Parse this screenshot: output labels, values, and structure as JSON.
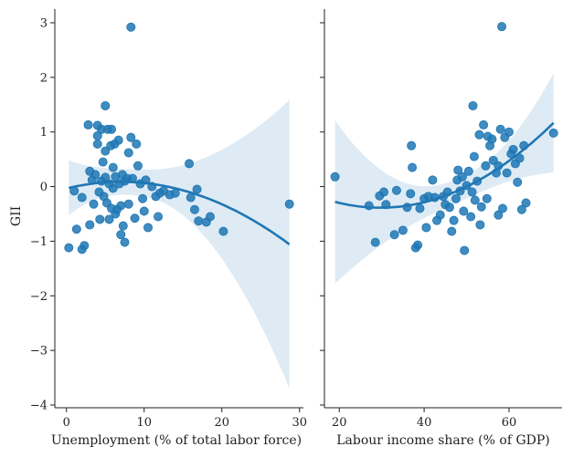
{
  "chart_data": [
    {
      "type": "scatter",
      "panel": "left",
      "xlabel": "Unemployment (% of total labor force)",
      "ylabel": "GII",
      "xlim": [
        -1.5,
        30.5
      ],
      "ylim": [
        -4.05,
        3.25
      ],
      "xticks": [
        0,
        10,
        20,
        30
      ],
      "yticks": [
        -4,
        -3,
        -2,
        -1,
        0,
        1,
        2,
        3
      ],
      "fit": "quadratic regression with confidence band",
      "points": [
        [
          0.3,
          -1.12
        ],
        [
          1.0,
          -0.08
        ],
        [
          1.3,
          -0.78
        ],
        [
          2.0,
          -0.2
        ],
        [
          2.0,
          -1.15
        ],
        [
          2.3,
          -1.08
        ],
        [
          2.8,
          1.13
        ],
        [
          3.0,
          0.28
        ],
        [
          3.0,
          -0.7
        ],
        [
          3.3,
          0.12
        ],
        [
          3.5,
          -0.32
        ],
        [
          3.7,
          0.22
        ],
        [
          4.0,
          1.12
        ],
        [
          4.0,
          0.93
        ],
        [
          4.0,
          0.78
        ],
        [
          4.2,
          -0.1
        ],
        [
          4.3,
          -0.6
        ],
        [
          4.5,
          1.05
        ],
        [
          4.5,
          0.1
        ],
        [
          4.7,
          0.45
        ],
        [
          4.8,
          -0.18
        ],
        [
          5.0,
          1.48
        ],
        [
          5.0,
          0.65
        ],
        [
          5.0,
          0.17
        ],
        [
          5.2,
          -0.3
        ],
        [
          5.3,
          1.05
        ],
        [
          5.5,
          0.05
        ],
        [
          5.5,
          -0.6
        ],
        [
          5.7,
          0.75
        ],
        [
          5.8,
          1.05
        ],
        [
          5.8,
          -0.4
        ],
        [
          6.0,
          0.35
        ],
        [
          6.0,
          -0.03
        ],
        [
          6.2,
          0.78
        ],
        [
          6.3,
          0.18
        ],
        [
          6.3,
          -0.5
        ],
        [
          6.5,
          -0.42
        ],
        [
          6.7,
          0.85
        ],
        [
          6.8,
          0.05
        ],
        [
          7.0,
          -0.35
        ],
        [
          7.0,
          -0.88
        ],
        [
          7.2,
          0.22
        ],
        [
          7.3,
          -0.72
        ],
        [
          7.5,
          0.1
        ],
        [
          7.5,
          -1.02
        ],
        [
          7.8,
          0.15
        ],
        [
          8.0,
          0.62
        ],
        [
          8.0,
          -0.32
        ],
        [
          8.3,
          2.92
        ],
        [
          8.3,
          0.9
        ],
        [
          8.5,
          0.15
        ],
        [
          8.8,
          -0.58
        ],
        [
          9.0,
          0.78
        ],
        [
          9.2,
          0.38
        ],
        [
          9.5,
          0.05
        ],
        [
          9.8,
          -0.22
        ],
        [
          10.0,
          -0.45
        ],
        [
          10.2,
          0.12
        ],
        [
          10.5,
          -0.75
        ],
        [
          11.0,
          0.0
        ],
        [
          11.5,
          -0.18
        ],
        [
          11.8,
          -0.55
        ],
        [
          12.0,
          -0.12
        ],
        [
          12.5,
          -0.08
        ],
        [
          13.3,
          -0.15
        ],
        [
          14.0,
          -0.12
        ],
        [
          15.8,
          0.42
        ],
        [
          16.0,
          -0.2
        ],
        [
          16.5,
          -0.42
        ],
        [
          16.8,
          -0.05
        ],
        [
          17.0,
          -0.63
        ],
        [
          18.0,
          -0.65
        ],
        [
          18.5,
          -0.55
        ],
        [
          20.2,
          -0.82
        ],
        [
          28.7,
          -0.32
        ]
      ]
    },
    {
      "type": "scatter",
      "panel": "right",
      "xlabel": "Labour income share (% of GDP)",
      "ylabel": "",
      "xlim": [
        16.5,
        72.5
      ],
      "ylim": [
        -4.05,
        3.25
      ],
      "xticks": [
        20,
        40,
        60
      ],
      "yticks": [
        -4,
        -3,
        -2,
        -1,
        0,
        1,
        2,
        3
      ],
      "fit": "quadratic regression with confidence band",
      "points": [
        [
          19.0,
          0.18
        ],
        [
          27.0,
          -0.35
        ],
        [
          28.5,
          -1.02
        ],
        [
          29.5,
          -0.17
        ],
        [
          30.5,
          -0.1
        ],
        [
          31.0,
          -0.33
        ],
        [
          33.0,
          -0.88
        ],
        [
          33.5,
          -0.07
        ],
        [
          35.0,
          -0.8
        ],
        [
          36.0,
          -0.38
        ],
        [
          36.8,
          -0.13
        ],
        [
          37.0,
          0.75
        ],
        [
          37.2,
          0.35
        ],
        [
          38.0,
          -1.12
        ],
        [
          38.5,
          -1.07
        ],
        [
          39.0,
          -0.4
        ],
        [
          40.0,
          -0.22
        ],
        [
          40.5,
          -0.75
        ],
        [
          41.0,
          -0.18
        ],
        [
          42.0,
          0.12
        ],
        [
          42.5,
          -0.2
        ],
        [
          43.0,
          -0.62
        ],
        [
          43.8,
          -0.52
        ],
        [
          44.5,
          -0.18
        ],
        [
          45.0,
          -0.33
        ],
        [
          45.5,
          -0.1
        ],
        [
          46.0,
          -0.38
        ],
        [
          46.5,
          -0.82
        ],
        [
          47.0,
          -0.62
        ],
        [
          47.5,
          -0.22
        ],
        [
          47.8,
          0.12
        ],
        [
          48.0,
          0.3
        ],
        [
          48.5,
          -0.08
        ],
        [
          49.0,
          0.18
        ],
        [
          49.3,
          -0.45
        ],
        [
          49.5,
          -1.17
        ],
        [
          50.0,
          0.02
        ],
        [
          50.5,
          0.28
        ],
        [
          51.0,
          -0.55
        ],
        [
          51.3,
          -0.1
        ],
        [
          51.5,
          1.48
        ],
        [
          51.8,
          0.55
        ],
        [
          52.0,
          -0.25
        ],
        [
          52.5,
          0.1
        ],
        [
          53.0,
          0.95
        ],
        [
          53.2,
          -0.7
        ],
        [
          53.5,
          -0.37
        ],
        [
          54.0,
          1.13
        ],
        [
          54.5,
          0.38
        ],
        [
          54.8,
          -0.22
        ],
        [
          55.0,
          0.92
        ],
        [
          55.5,
          0.75
        ],
        [
          56.0,
          0.87
        ],
        [
          56.3,
          0.48
        ],
        [
          57.0,
          0.25
        ],
        [
          57.5,
          -0.52
        ],
        [
          58.0,
          1.05
        ],
        [
          58.3,
          2.93
        ],
        [
          58.5,
          -0.4
        ],
        [
          59.0,
          0.9
        ],
        [
          59.5,
          0.25
        ],
        [
          60.0,
          1.0
        ],
        [
          60.5,
          0.6
        ],
        [
          61.0,
          0.68
        ],
        [
          61.5,
          0.42
        ],
        [
          62.0,
          0.08
        ],
        [
          62.5,
          0.52
        ],
        [
          63.0,
          -0.42
        ],
        [
          63.5,
          0.75
        ],
        [
          64.0,
          -0.3
        ],
        [
          70.5,
          0.98
        ],
        [
          57.5,
          0.38
        ]
      ]
    }
  ]
}
